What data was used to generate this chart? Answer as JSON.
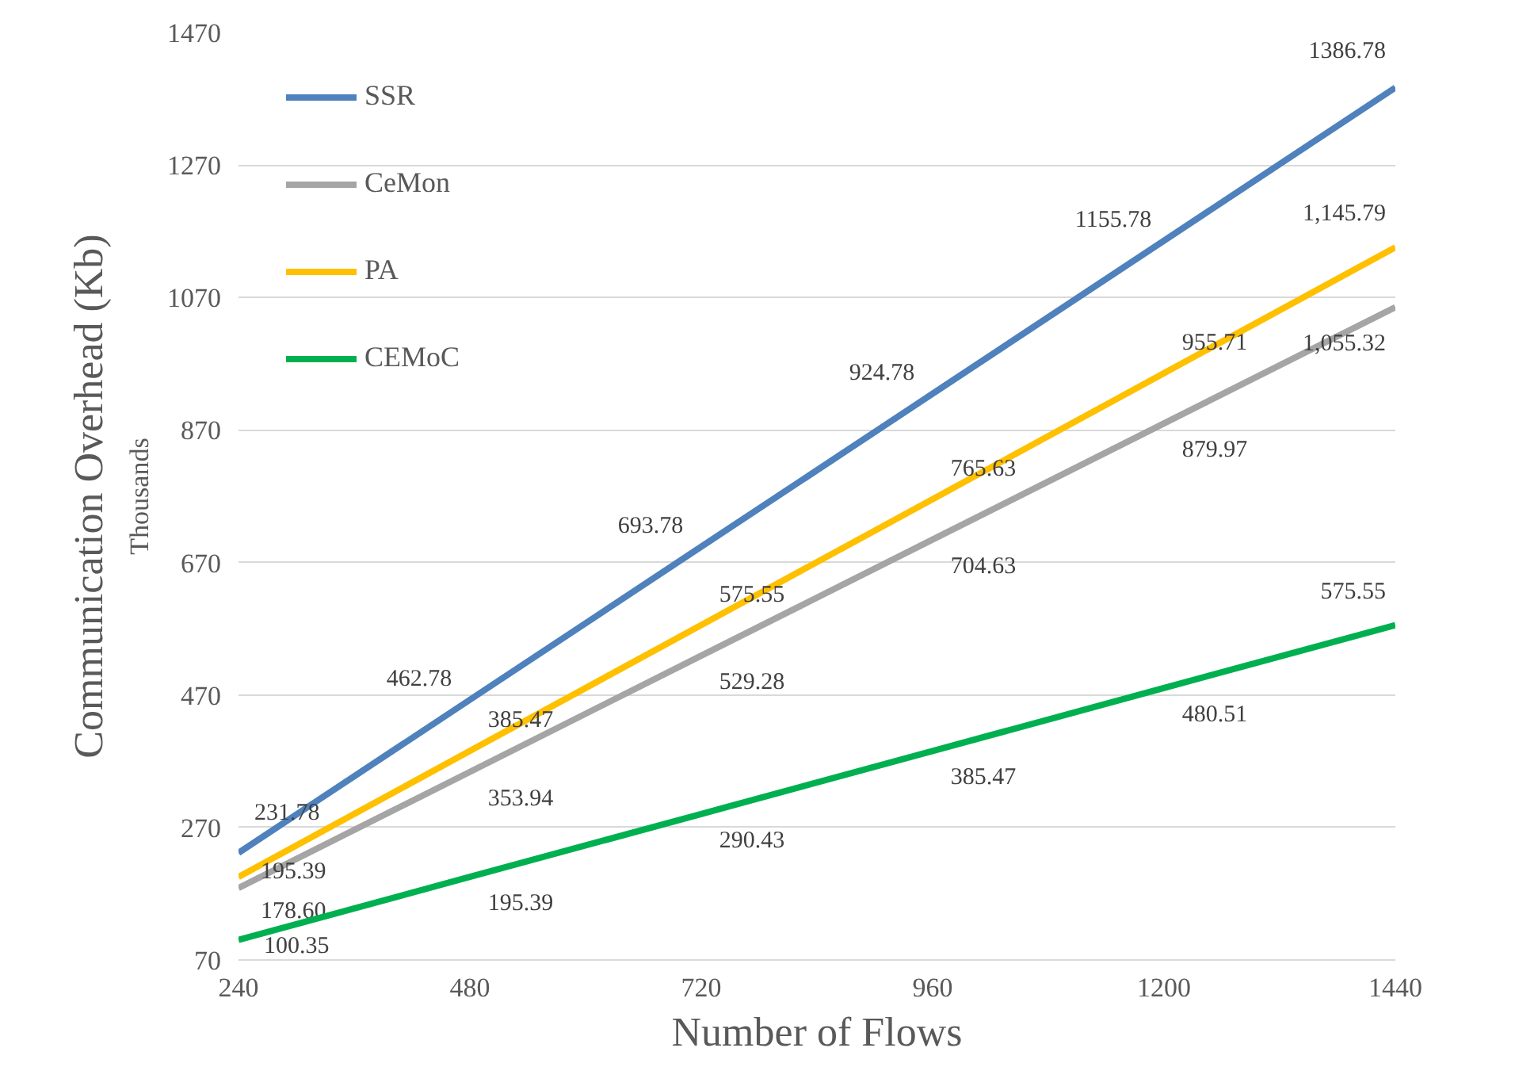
{
  "chart_data": {
    "type": "line",
    "xlabel": "Number of Flows",
    "ylabel": "Communication Overhead (Kb)",
    "annotations": [
      "Thousands"
    ],
    "x": [
      240,
      480,
      720,
      960,
      1200,
      1440
    ],
    "xlim": [
      240,
      1440
    ],
    "xticks": [
      240,
      480,
      720,
      960,
      1200,
      1440
    ],
    "ylim": [
      70,
      1470
    ],
    "yticks": [
      70,
      270,
      470,
      670,
      870,
      1070,
      1270,
      1470
    ],
    "grid": "y",
    "legend": "top left",
    "marker": "none",
    "line_style": "solid",
    "series": [
      {
        "name": "SSR",
        "color": "#4f81bd",
        "values": [
          231.78,
          462.78,
          693.78,
          924.78,
          1155.78,
          1386.78
        ],
        "value_labels": [
          "231.78",
          "462.78",
          "693.78",
          "924.78",
          "1155.78",
          "1386.78"
        ]
      },
      {
        "name": "CeMon",
        "color": "#a5a5a5",
        "values": [
          178.6,
          353.94,
          529.28,
          704.63,
          879.97,
          1055.32
        ],
        "value_labels": [
          "178.60",
          "353.94",
          "529.28",
          "704.63",
          "879.97",
          "1,055.32"
        ]
      },
      {
        "name": "PA",
        "color": "#ffc000",
        "values": [
          195.39,
          385.47,
          575.55,
          765.63,
          955.71,
          1145.79
        ],
        "value_labels": [
          "195.39",
          "385.47",
          "575.55",
          "765.63",
          "955.71",
          "1,145.79"
        ]
      },
      {
        "name": "CEMoC",
        "color": "#00b050",
        "values": [
          100.35,
          195.39,
          290.43,
          385.47,
          480.51,
          575.55
        ],
        "value_labels": [
          "100.35",
          "195.39",
          "290.43",
          "385.47",
          "480.51",
          "575.55"
        ]
      }
    ]
  }
}
